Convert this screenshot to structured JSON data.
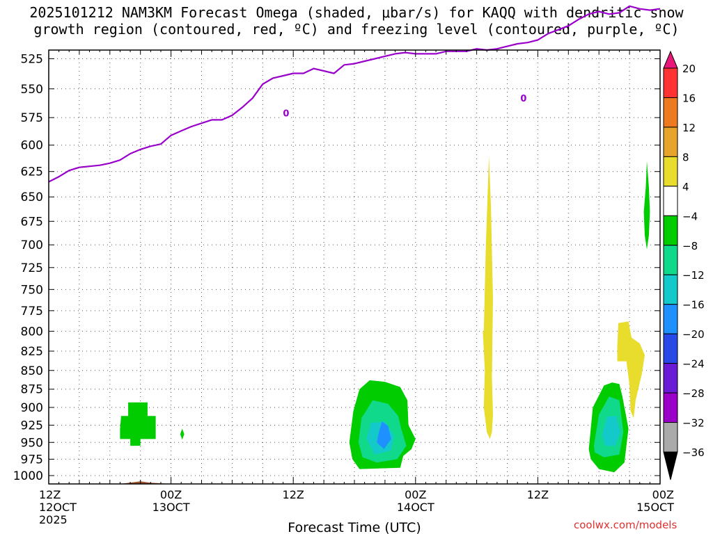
{
  "title_line1": "2025101212 NAM3KM Forecast Omega (shaded, μbar/s) for KAQQ with dendritic snow",
  "title_line2": "growth region (contoured, red, ºC) and freezing level (contoured, purple, ºC)",
  "credit": "coolwx.com/models",
  "chart_data": {
    "type": "heatmap",
    "title": "2025101212 NAM3KM Forecast Omega (shaded, μbar/s) for KAQQ with dendritic snow growth region (contoured, red, ºC) and freezing level (contoured, purple, ºC)",
    "xlabel": "Forecast Time (UTC)",
    "ylabel": "",
    "x_ticks": [
      {
        "hour": 0,
        "lines": [
          "12Z",
          "12OCT",
          "2025"
        ]
      },
      {
        "hour": 12,
        "lines": [
          "00Z",
          "13OCT"
        ]
      },
      {
        "hour": 24,
        "lines": [
          "12Z"
        ]
      },
      {
        "hour": 36,
        "lines": [
          "00Z",
          "14OCT"
        ]
      },
      {
        "hour": 48,
        "lines": [
          "12Z"
        ]
      },
      {
        "hour": 60,
        "lines": [
          "00Z",
          "15OCT"
        ]
      }
    ],
    "xlim": [
      0,
      60
    ],
    "y_ticks": [
      525,
      550,
      575,
      600,
      625,
      650,
      675,
      700,
      725,
      750,
      775,
      800,
      825,
      850,
      875,
      900,
      925,
      950,
      975,
      1000
    ],
    "ylim": [
      1013,
      518
    ],
    "y_scale": "log",
    "grid": true,
    "colorbar": {
      "labels": [
        "20",
        "16",
        "12",
        "8",
        "4",
        "−4",
        "−8",
        "−12",
        "−16",
        "−20",
        "−24",
        "−28",
        "−32",
        "−36"
      ],
      "bins": [
        {
          "from": 16,
          "to": 20,
          "color": "#ff3333"
        },
        {
          "from": 12,
          "to": 16,
          "color": "#ee7a20"
        },
        {
          "from": 8,
          "to": 12,
          "color": "#e6a52a"
        },
        {
          "from": 4,
          "to": 8,
          "color": "#e8dd2c"
        },
        {
          "from": -4,
          "to": 4,
          "color": "#ffffff"
        },
        {
          "from": -8,
          "to": -4,
          "color": "#00cc00"
        },
        {
          "from": -12,
          "to": -8,
          "color": "#11d98c"
        },
        {
          "from": -16,
          "to": -12,
          "color": "#14c9c9"
        },
        {
          "from": -20,
          "to": -16,
          "color": "#1e90ff"
        },
        {
          "from": -24,
          "to": -20,
          "color": "#2848e8"
        },
        {
          "from": -28,
          "to": -24,
          "color": "#6a1bd6"
        },
        {
          "from": -32,
          "to": -28,
          "color": "#9a00c8"
        },
        {
          "from": -36,
          "to": -32,
          "color": "#aaaaaa"
        }
      ],
      "top_arrow_color": "#e8177a",
      "bottom_arrow_color": "#000000"
    },
    "freezing_level": {
      "label": "0",
      "color": "#9900cc",
      "points": [
        [
          0,
          635
        ],
        [
          1,
          630
        ],
        [
          2,
          624
        ],
        [
          3,
          621
        ],
        [
          4,
          620
        ],
        [
          5,
          619
        ],
        [
          6,
          617
        ],
        [
          7,
          614
        ],
        [
          8,
          608
        ],
        [
          9,
          604
        ],
        [
          10,
          601
        ],
        [
          11,
          599
        ],
        [
          12,
          591
        ],
        [
          13,
          587
        ],
        [
          14,
          583
        ],
        [
          15,
          580
        ],
        [
          16,
          577
        ],
        [
          17,
          577
        ],
        [
          18,
          573
        ],
        [
          19,
          566
        ],
        [
          20,
          558
        ],
        [
          21,
          546
        ],
        [
          22,
          541
        ],
        [
          23,
          539
        ],
        [
          24,
          537
        ],
        [
          25,
          537
        ],
        [
          26,
          533
        ],
        [
          27,
          535
        ],
        [
          28,
          537
        ],
        [
          29,
          530
        ],
        [
          30,
          529
        ],
        [
          31,
          527
        ],
        [
          32,
          525
        ],
        [
          33,
          523
        ],
        [
          34,
          521
        ],
        [
          35,
          520
        ],
        [
          36,
          521
        ],
        [
          37,
          521
        ],
        [
          38,
          521
        ],
        [
          39,
          519
        ],
        [
          40,
          519
        ],
        [
          41,
          519
        ],
        [
          42,
          517
        ],
        [
          43,
          518
        ],
        [
          44,
          517
        ],
        [
          45,
          515
        ],
        [
          46,
          513
        ],
        [
          47,
          512
        ],
        [
          48,
          510
        ],
        [
          49,
          505
        ],
        [
          50,
          502
        ],
        [
          51,
          499
        ],
        [
          52,
          494
        ],
        [
          53,
          490
        ],
        [
          54,
          488
        ],
        [
          55,
          490
        ],
        [
          56,
          489
        ],
        [
          57,
          484
        ],
        [
          58,
          486
        ],
        [
          59,
          487
        ],
        [
          60,
          486
        ]
      ],
      "markers": [
        [
          23.3,
          571
        ],
        [
          46.6,
          558
        ]
      ]
    },
    "omega_areas": [
      {
        "value_bin": "-8 to -4",
        "color": "#00cc00",
        "outline": [
          [
            7.0,
            930
          ],
          [
            7.1,
            912
          ],
          [
            7.8,
            912
          ],
          [
            7.8,
            893
          ],
          [
            9.7,
            893
          ],
          [
            9.7,
            912
          ],
          [
            10.5,
            912
          ],
          [
            10.5,
            945
          ],
          [
            9.0,
            945
          ],
          [
            9.0,
            955
          ],
          [
            8.0,
            955
          ],
          [
            8.0,
            945
          ],
          [
            7.0,
            945
          ]
        ]
      },
      {
        "value_bin": "-8 to -4",
        "color": "#00cc00",
        "outline": [
          [
            12.9,
            938
          ],
          [
            13.1,
            930
          ],
          [
            13.3,
            938
          ],
          [
            13.1,
            946
          ]
        ]
      },
      {
        "value_bin": "-8 to -4",
        "color": "#00cc00",
        "outline": [
          [
            29.5,
            950
          ],
          [
            29.9,
            905
          ],
          [
            30.5,
            875
          ],
          [
            31.5,
            863
          ],
          [
            33.0,
            865
          ],
          [
            34.5,
            872
          ],
          [
            35.2,
            890
          ],
          [
            35.3,
            925
          ],
          [
            36.0,
            945
          ],
          [
            35.6,
            960
          ],
          [
            34.8,
            970
          ],
          [
            34.5,
            988
          ],
          [
            30.5,
            990
          ],
          [
            29.8,
            975
          ]
        ]
      },
      {
        "value_bin": "-12 to -8",
        "color": "#11d98c",
        "outline": [
          [
            30.4,
            950
          ],
          [
            30.7,
            915
          ],
          [
            31.8,
            890
          ],
          [
            33.3,
            895
          ],
          [
            34.3,
            912
          ],
          [
            34.6,
            930
          ],
          [
            35.1,
            955
          ],
          [
            34.2,
            975
          ],
          [
            32.2,
            980
          ],
          [
            30.8,
            972
          ]
        ]
      },
      {
        "value_bin": "-16 to -12",
        "color": "#14c9c9",
        "outline": [
          [
            31.2,
            945
          ],
          [
            31.6,
            922
          ],
          [
            33.0,
            920
          ],
          [
            33.9,
            940
          ],
          [
            33.6,
            962
          ],
          [
            32.0,
            968
          ]
        ]
      },
      {
        "value_bin": "-20 to -16",
        "color": "#1e90ff",
        "outline": [
          [
            32.4,
            935
          ],
          [
            32.7,
            920
          ],
          [
            33.3,
            926
          ],
          [
            33.6,
            945
          ],
          [
            32.9,
            960
          ],
          [
            32.2,
            950
          ]
        ]
      },
      {
        "value_bin": "-8 to -4",
        "color": "#00cc00",
        "outline": [
          [
            53.0,
            960
          ],
          [
            53.4,
            900
          ],
          [
            54.5,
            870
          ],
          [
            55.3,
            866
          ],
          [
            56.0,
            868
          ],
          [
            56.3,
            885
          ],
          [
            56.9,
            930
          ],
          [
            56.5,
            980
          ],
          [
            55.5,
            995
          ],
          [
            54.0,
            990
          ],
          [
            53.2,
            975
          ]
        ]
      },
      {
        "value_bin": "-12 to -8",
        "color": "#11d98c",
        "outline": [
          [
            53.5,
            955
          ],
          [
            54.0,
            910
          ],
          [
            55.0,
            885
          ],
          [
            56.0,
            890
          ],
          [
            56.4,
            935
          ],
          [
            56.0,
            968
          ],
          [
            54.5,
            972
          ],
          [
            53.6,
            965
          ]
        ]
      },
      {
        "value_bin": "-16 to -12",
        "color": "#14c9c9",
        "outline": [
          [
            54.3,
            940
          ],
          [
            54.8,
            913
          ],
          [
            55.7,
            912
          ],
          [
            56.1,
            935
          ],
          [
            55.6,
            955
          ],
          [
            54.6,
            955
          ]
        ]
      },
      {
        "value_bin": "-8 to -4",
        "color": "#00cc00",
        "outline": [
          [
            58.4,
            665
          ],
          [
            58.6,
            640
          ],
          [
            58.7,
            615
          ],
          [
            58.9,
            640
          ],
          [
            59.0,
            665
          ],
          [
            58.9,
            690
          ],
          [
            58.7,
            705
          ],
          [
            58.5,
            690
          ]
        ]
      }
    ],
    "positive_areas": [
      {
        "value_bin": "4 to 8",
        "color": "#e8dd2c",
        "outline": [
          [
            42.7,
            800
          ],
          [
            42.9,
            700
          ],
          [
            43.1,
            640
          ],
          [
            43.2,
            610
          ],
          [
            43.4,
            660
          ],
          [
            43.6,
            760
          ],
          [
            43.5,
            860
          ],
          [
            43.6,
            910
          ],
          [
            43.5,
            935
          ],
          [
            43.3,
            945
          ],
          [
            43.0,
            935
          ],
          [
            42.7,
            900
          ],
          [
            42.8,
            850
          ],
          [
            42.6,
            800
          ]
        ]
      },
      {
        "value_bin": "4 to 8",
        "color": "#e8dd2c",
        "outline": [
          [
            55.8,
            820
          ],
          [
            55.9,
            790
          ],
          [
            56.9,
            788
          ],
          [
            57.2,
            808
          ],
          [
            58.0,
            815
          ],
          [
            58.5,
            830
          ],
          [
            58.2,
            855
          ],
          [
            57.6,
            890
          ],
          [
            57.4,
            915
          ],
          [
            57.1,
            905
          ],
          [
            57.0,
            870
          ],
          [
            56.7,
            838
          ],
          [
            55.8,
            838
          ]
        ]
      }
    ],
    "ground": {
      "color": "#a0522d",
      "top": [
        [
          0,
          1013
        ],
        [
          1.5,
          1016
        ],
        [
          2.5,
          1013
        ],
        [
          7,
          1013
        ],
        [
          9,
          1009
        ],
        [
          10,
          1011
        ],
        [
          12,
          1013
        ],
        [
          19,
          1014
        ],
        [
          20,
          1016
        ],
        [
          29,
          1017
        ],
        [
          29.5,
          1017
        ],
        [
          30.5,
          1013
        ],
        [
          36,
          1016
        ],
        [
          50,
          1017
        ],
        [
          52,
          1019
        ],
        [
          55,
          1017
        ],
        [
          57,
          1016
        ],
        [
          58,
          1012
        ],
        [
          59,
          1015
        ],
        [
          60,
          1017
        ]
      ]
    }
  }
}
